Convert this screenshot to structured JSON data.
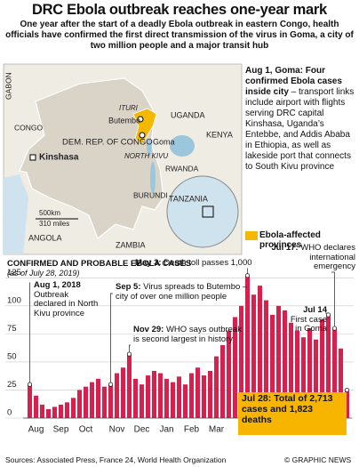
{
  "title": "DRC Ebola outbreak reaches one-year mark",
  "subtitle": "One year after the start of a deadly Ebola outbreak in eastern Congo, health officials have confirmed the first direct transmission of the virus in Goma, a city of two million people and a major transit hub",
  "map": {
    "labels": [
      "ITURI",
      "Butembo",
      "UGANDA",
      "KENYA",
      "DEM. REP. OF CONGO",
      "NORTH KIVU",
      "Goma",
      "RWANDA",
      "BURUNDI",
      "TANZANIA",
      "CONGO",
      "GABON",
      "Kinshasa",
      "ANGOLA",
      "ZAMBIA"
    ],
    "scale": [
      "500km",
      "310 miles"
    ]
  },
  "note": {
    "head": "Aug 1, Goma:",
    "lead": "Four confirmed Ebola cases inside city",
    "body": " – transport links include airport with flights serving DRC capital Kinshasa, Uganda’s Entebbe, and Addis Ababa in Ethiopia, as well as lakeside port that connects to South Kivu province"
  },
  "legend": "Ebola-affected provinces",
  "chart_data": {
    "type": "bar",
    "title": "CONFIRMED AND PROBABLE EBOLA CASES",
    "subtitle": "(as of July 28, 2019)",
    "color": "#d8204e",
    "categories": [
      null,
      "Aug",
      null,
      null,
      null,
      "Sep",
      null,
      null,
      null,
      "Oct",
      null,
      null,
      null,
      null,
      "Nov",
      null,
      null,
      null,
      "Dec",
      null,
      null,
      null,
      "Jan",
      null,
      null,
      null,
      "Feb",
      null,
      null,
      null,
      "Mar",
      null,
      null,
      null,
      null,
      "Apr",
      null,
      null,
      null,
      "May",
      null,
      null,
      null,
      "Jun",
      null,
      null,
      null,
      null,
      "Jul",
      null,
      null,
      null
    ],
    "values": [
      30,
      20,
      12,
      8,
      10,
      12,
      14,
      18,
      25,
      28,
      32,
      35,
      28,
      30,
      40,
      45,
      57,
      35,
      30,
      38,
      42,
      40,
      35,
      32,
      37,
      30,
      40,
      45,
      38,
      42,
      55,
      65,
      78,
      90,
      100,
      127,
      110,
      118,
      105,
      92,
      100,
      96,
      85,
      78,
      72,
      80,
      70,
      88,
      92,
      80,
      62,
      25
    ],
    "ylim": [
      0,
      130
    ],
    "yticks": [
      0,
      25,
      50,
      75,
      100,
      125
    ],
    "grid": true,
    "annotations": [
      {
        "date": "Aug 1, 2018",
        "text": "Outbreak declared in North Kivu province"
      },
      {
        "date": "Sep 5:",
        "text": "Virus spreads to Butembo – city of over one million people"
      },
      {
        "date": "May 3:",
        "text": "Death toll passes 1,000"
      },
      {
        "date": "Nov 29:",
        "text": "WHO says outbreak is second largest in history"
      },
      {
        "date": "Jul 17:",
        "text": "WHO declares international emergency"
      },
      {
        "date": "Jul 14",
        "text": "First case in Goma"
      },
      {
        "date": "Jul 28:",
        "text": "Total of 2,713 cases and 1,823 deaths"
      }
    ]
  },
  "footer": {
    "sources": "Sources: Associated Press, France 24, World Health Organization",
    "copyright": "© GRAPHIC NEWS"
  }
}
